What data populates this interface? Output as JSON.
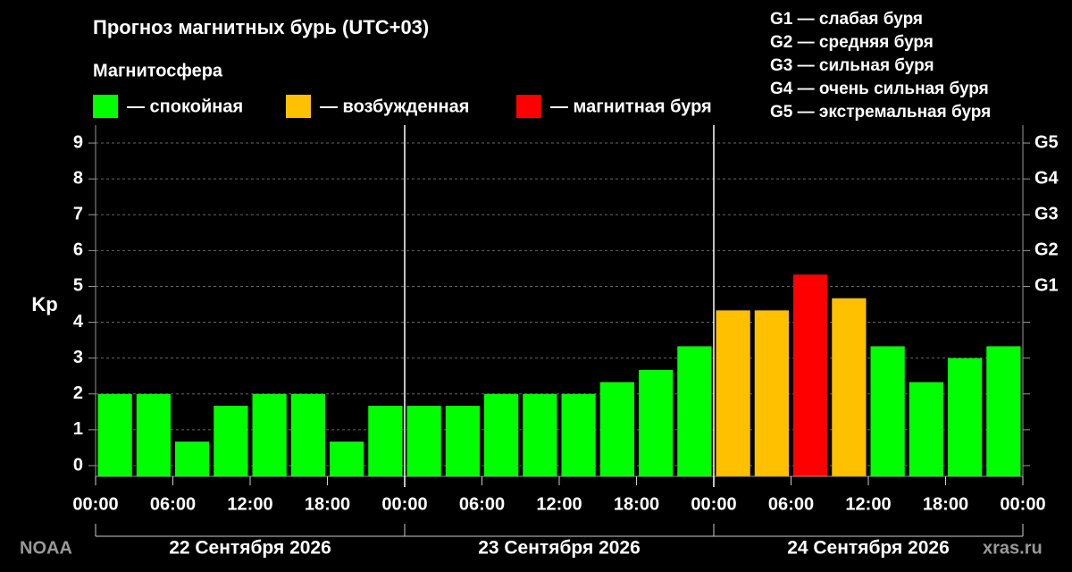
{
  "chart_data": {
    "type": "bar",
    "title": "Прогноз магнитных бурь (UTC+03)",
    "subtitle": "Магнитосфера",
    "legend": [
      {
        "name": "— спокойная",
        "color": "#00ff00"
      },
      {
        "name": "— возбужденная",
        "color": "#ffc000"
      },
      {
        "name": "— магнитная буря",
        "color": "#ff0000"
      }
    ],
    "g_scale": [
      "G1 — слабая буря",
      "G2 — средняя буря",
      "G3 — сильная буря",
      "G4 — очень сильная буря",
      "G5 — экстремальная буря"
    ],
    "y_label": "Kp",
    "values": [
      2,
      2,
      0.67,
      1.67,
      2,
      2,
      0.67,
      1.67,
      1.67,
      1.67,
      2,
      2,
      2,
      2.33,
      2.67,
      3.33,
      4.33,
      4.33,
      5.33,
      4.67,
      3.33,
      2.33,
      3,
      3.33
    ],
    "colors": [
      "#00ff00",
      "#00ff00",
      "#00ff00",
      "#00ff00",
      "#00ff00",
      "#00ff00",
      "#00ff00",
      "#00ff00",
      "#00ff00",
      "#00ff00",
      "#00ff00",
      "#00ff00",
      "#00ff00",
      "#00ff00",
      "#00ff00",
      "#00ff00",
      "#ffc000",
      "#ffc000",
      "#ff0000",
      "#ffc000",
      "#00ff00",
      "#00ff00",
      "#00ff00",
      "#00ff00"
    ],
    "xlim": [
      0,
      72
    ],
    "xticks": [
      {
        "value": 0,
        "label": "00:00"
      },
      {
        "value": 6,
        "label": "06:00"
      },
      {
        "value": 12,
        "label": "12:00"
      },
      {
        "value": 18,
        "label": "18:00"
      },
      {
        "value": 24,
        "label": "00:00"
      },
      {
        "value": 30,
        "label": "06:00"
      },
      {
        "value": 36,
        "label": "12:00"
      },
      {
        "value": 42,
        "label": "18:00"
      },
      {
        "value": 48,
        "label": "00:00"
      },
      {
        "value": 54,
        "label": "06:00"
      },
      {
        "value": 60,
        "label": "12:00"
      },
      {
        "value": 66,
        "label": "18:00"
      },
      {
        "value": 72,
        "label": "00:00"
      }
    ],
    "days": [
      "22 Сентября 2026",
      "23 Сентября 2026",
      "24 Сентября 2026"
    ],
    "ylim": [
      -0.3,
      9.5
    ],
    "yticks": [
      0,
      1,
      2,
      3,
      4,
      5,
      6,
      7,
      8,
      9
    ],
    "y2lim": [
      -0.3,
      9.5
    ],
    "y2ticks": [
      {
        "value": 5,
        "label": "G1"
      },
      {
        "value": 6,
        "label": "G2"
      },
      {
        "value": 7,
        "label": "G3"
      },
      {
        "value": 8,
        "label": "G4"
      },
      {
        "value": 9,
        "label": "G5"
      }
    ],
    "grid": true,
    "source": "NOAA",
    "site": "xras.ru"
  }
}
